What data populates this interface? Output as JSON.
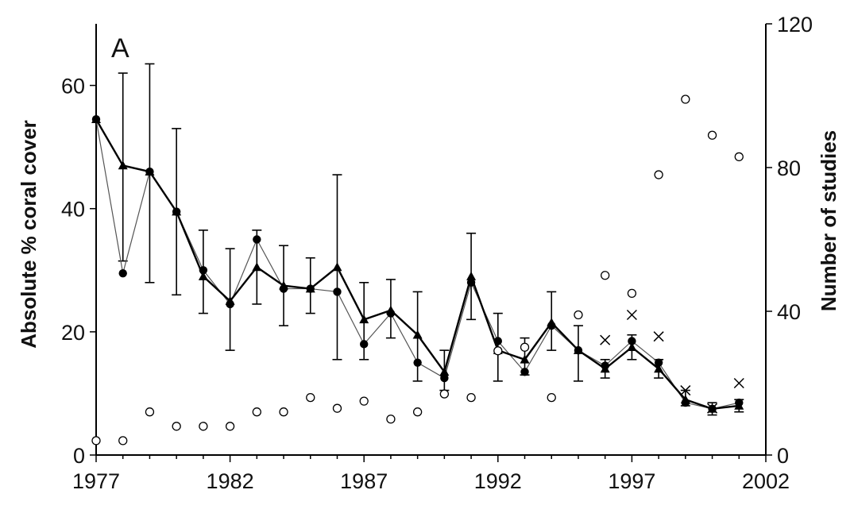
{
  "chart_data": {
    "type": "line",
    "panel_label": "A",
    "xlabel": "",
    "ylabel_left": "Absolute % coral cover",
    "ylabel_right": "Number of studies",
    "xlim": [
      1977,
      2002
    ],
    "ylim_left": [
      0,
      70
    ],
    "ylim_right": [
      0,
      120
    ],
    "x_ticks": [
      1977,
      1982,
      1987,
      1992,
      1997,
      2002
    ],
    "y_left_ticks": [
      0,
      20,
      40,
      60
    ],
    "y_right_ticks": [
      0,
      40,
      80,
      120
    ],
    "grid": false,
    "series": [
      {
        "marker": "triangle",
        "line": "thick",
        "axis": "left",
        "x": [
          1977,
          1978,
          1979,
          1980,
          1981,
          1982,
          1983,
          1984,
          1985,
          1986,
          1987,
          1988,
          1989,
          1990,
          1991,
          1992,
          1993,
          1994,
          1995,
          1996,
          1997,
          1998,
          1999,
          2000,
          2001
        ],
        "y": [
          54.5,
          47,
          46,
          39.5,
          29,
          25,
          30.5,
          27.5,
          27,
          30.5,
          22,
          23.5,
          19.5,
          13.5,
          29,
          17,
          15.5,
          21.5,
          17,
          14,
          17.5,
          14,
          9,
          7.5,
          8
        ],
        "error_low": [
          null,
          31.5,
          28,
          26,
          23,
          17,
          24.5,
          21,
          23,
          15.5,
          15.5,
          19,
          12,
          10.5,
          22,
          12,
          13,
          17,
          12,
          12.5,
          15.5,
          12.5,
          8,
          6.5,
          7
        ],
        "error_high": [
          null,
          62,
          63.5,
          53,
          36.5,
          33.5,
          36.5,
          34,
          32,
          45.5,
          28,
          28.5,
          26.5,
          17,
          36,
          23,
          19,
          26.5,
          21,
          15.5,
          19.5,
          15.5,
          10.5,
          8.5,
          9
        ]
      },
      {
        "marker": "filled-circle",
        "line": "thin",
        "axis": "left",
        "x": [
          1977,
          1978,
          1979,
          1980,
          1981,
          1982,
          1983,
          1984,
          1985,
          1986,
          1987,
          1988,
          1989,
          1990,
          1991,
          1992,
          1993,
          1994,
          1995,
          1996,
          1997,
          1998,
          1999,
          2000,
          2001
        ],
        "y": [
          54.5,
          29.5,
          46,
          39.5,
          30,
          24.5,
          35,
          27,
          27,
          26.5,
          18,
          23,
          15,
          12.5,
          28,
          18.5,
          13.5,
          21,
          17,
          14.5,
          18.5,
          15,
          8.5,
          7.5,
          8.5
        ]
      },
      {
        "marker": "open-circle",
        "axis": "right",
        "x": [
          1977,
          1978,
          1979,
          1980,
          1981,
          1982,
          1983,
          1984,
          1985,
          1986,
          1987,
          1988,
          1989,
          1990,
          1991,
          1992,
          1993,
          1994,
          1995,
          1996,
          1997,
          1998,
          1999,
          2000,
          2001
        ],
        "y": [
          4,
          4,
          12,
          8,
          8,
          8,
          12,
          12,
          16,
          13,
          15,
          10,
          12,
          17,
          16,
          29,
          30,
          16,
          39,
          50,
          45,
          78,
          99,
          89,
          83
        ]
      },
      {
        "marker": "x",
        "axis": "right",
        "x": [
          1996,
          1997,
          1998,
          1999,
          2000,
          2001
        ],
        "y": [
          32,
          39,
          33,
          18,
          13,
          20
        ]
      }
    ]
  }
}
